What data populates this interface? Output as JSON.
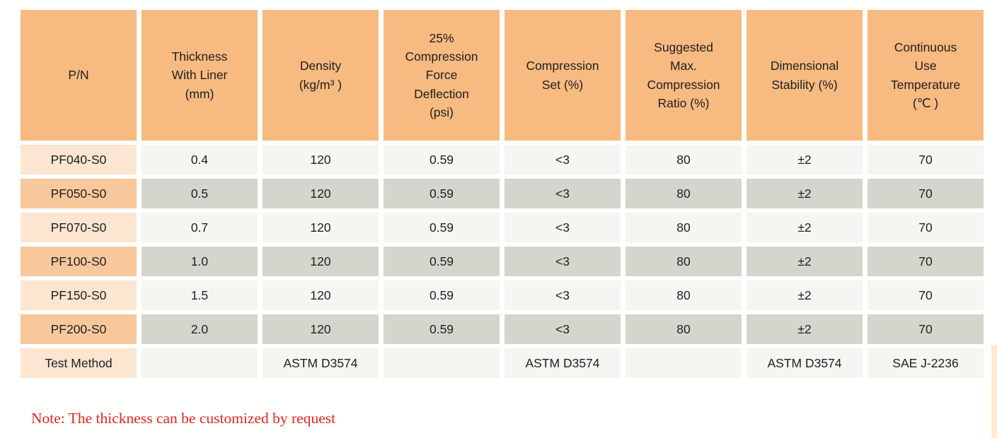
{
  "page": {
    "note": "Note: The thickness can be customized by request"
  },
  "colors": {
    "page_bg": "#FFFFFE",
    "header_bg": "#F7BA81",
    "pn_light_bg": "#FCE5D1",
    "pn_dark_bg": "#F8C89D",
    "cell_light_bg": "#F5F5F1",
    "cell_dark_bg": "#D4D5CD",
    "text": "#1F1F1F",
    "note_text": "#E52420"
  },
  "table": {
    "columns": [
      "P/N",
      "Thickness\nWith Liner\n(mm)",
      "Density\n(kg/m³ )",
      "25%\nCompression\nForce\nDeflection\n(psi)",
      "Compression\nSet (%)",
      "Suggested\nMax.\nCompression\nRatio (%)",
      "Dimensional\nStability (%)",
      "Continuous\nUse\nTemperature\n(℃ )"
    ],
    "rows": [
      {
        "pn": "PF040-S0",
        "values": [
          "0.4",
          "120",
          "0.59",
          "<3",
          "80",
          "±2",
          "70"
        ]
      },
      {
        "pn": "PF050-S0",
        "values": [
          "0.5",
          "120",
          "0.59",
          "<3",
          "80",
          "±2",
          "70"
        ]
      },
      {
        "pn": "PF070-S0",
        "values": [
          "0.7",
          "120",
          "0.59",
          "<3",
          "80",
          "±2",
          "70"
        ]
      },
      {
        "pn": "PF100-S0",
        "values": [
          "1.0",
          "120",
          "0.59",
          "<3",
          "80",
          "±2",
          "70"
        ]
      },
      {
        "pn": "PF150-S0",
        "values": [
          "1.5",
          "120",
          "0.59",
          "<3",
          "80",
          "±2",
          "70"
        ]
      },
      {
        "pn": "PF200-S0",
        "values": [
          "2.0",
          "120",
          "0.59",
          "<3",
          "80",
          "±2",
          "70"
        ]
      }
    ],
    "test_method_row": {
      "label": "Test Method",
      "values": [
        "",
        "ASTM D3574",
        "",
        "ASTM D3574",
        "",
        "ASTM D3574",
        "SAE J-2236"
      ]
    }
  }
}
